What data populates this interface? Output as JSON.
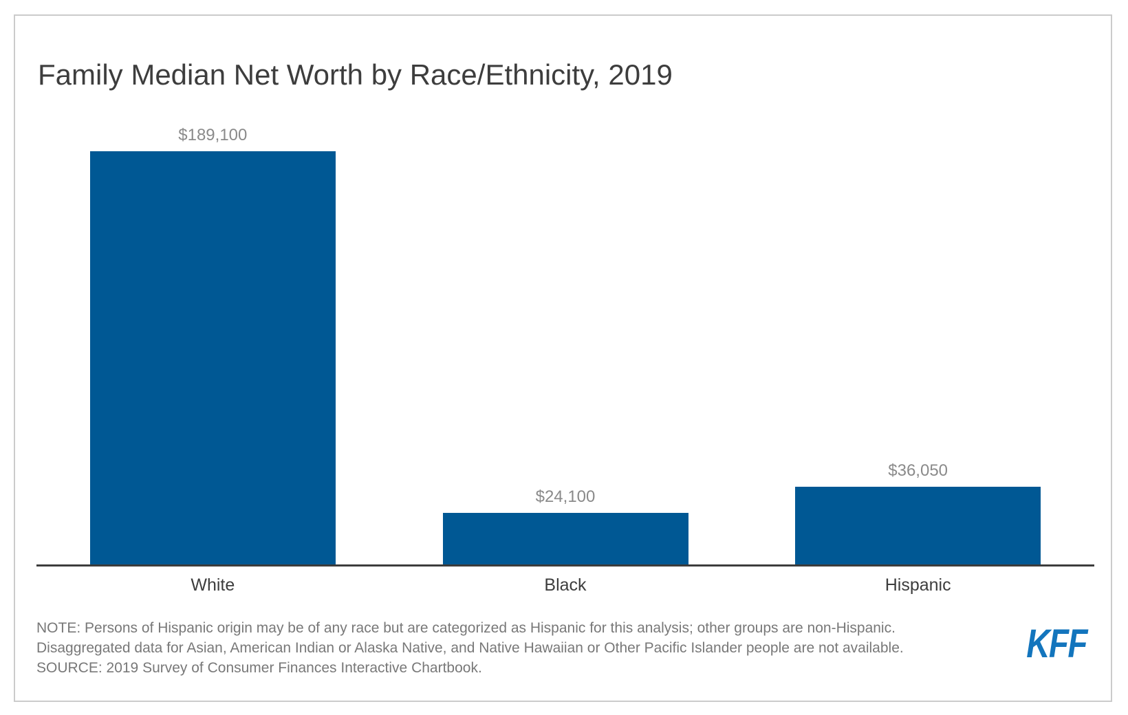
{
  "chart_data": {
    "type": "bar",
    "title": "Family Median Net Worth by Race/Ethnicity, 2019",
    "categories": [
      "White",
      "Black",
      "Hispanic"
    ],
    "values": [
      189100,
      24100,
      36050
    ],
    "value_labels": [
      "$189,100",
      "$24,100",
      "$36,050"
    ],
    "xlabel": "",
    "ylabel": "",
    "grid": false,
    "legend": false,
    "bar_color": "#005894",
    "value_label_color": "#8a8a8a",
    "category_label_color": "#3d3d3d",
    "axis_line_color": "#3c3c3c"
  },
  "notes": {
    "note_line1": "NOTE: Persons of Hispanic origin may be of any race but are categorized as Hispanic for this analysis; other groups are non-Hispanic.",
    "note_line2": "Disaggregated data for Asian, American Indian or Alaska Native, and Native Hawaiian or Other Pacific Islander people are not available.",
    "source_line": "SOURCE: 2019 Survey of Consumer Finances Interactive Chartbook."
  },
  "branding": {
    "logo_text": "KFF",
    "logo_color": "#1375bd"
  }
}
